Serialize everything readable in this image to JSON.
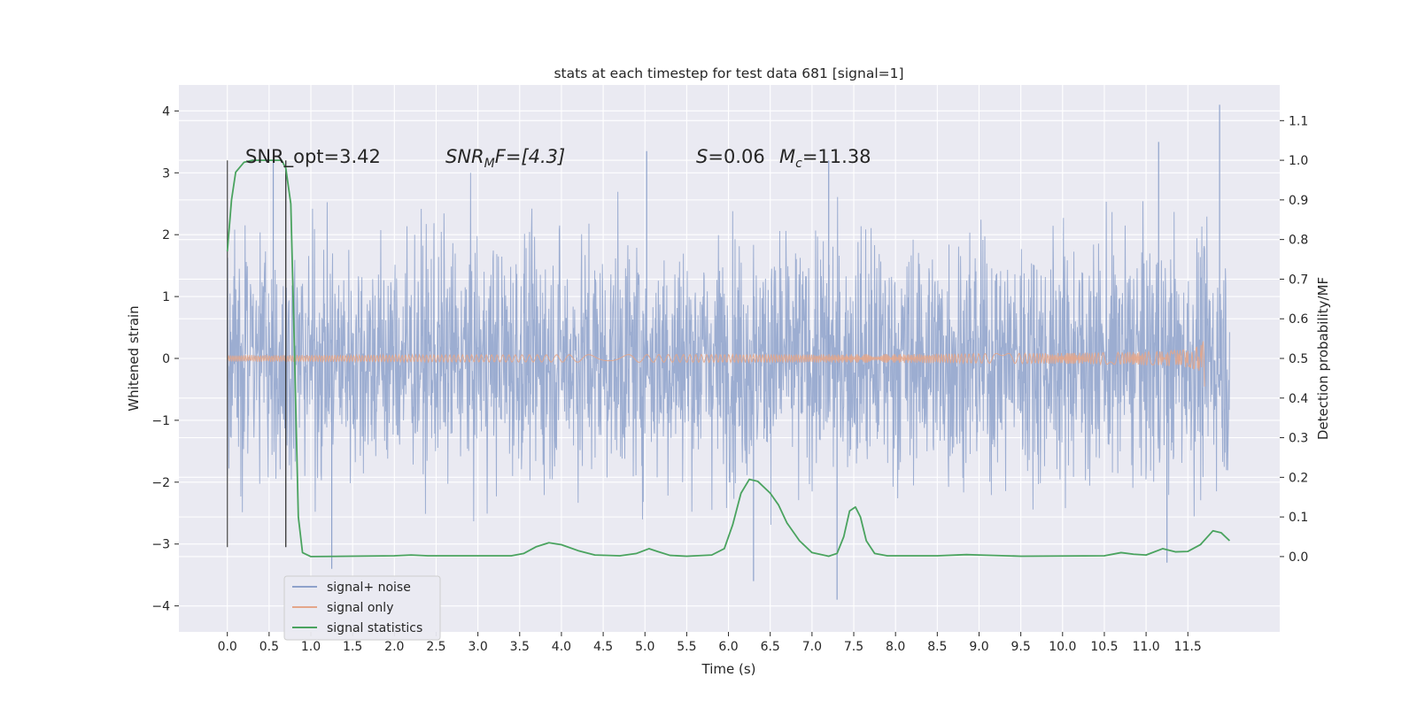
{
  "chart_data": {
    "type": "line",
    "title": "stats at each timestep for test data 681 [signal=1]",
    "xlabel": "Time (s)",
    "ylabel": "Whitened strain",
    "ylabel_right": "Detection probability/MF",
    "xlim": [
      -0.58,
      12.6
    ],
    "ylim": [
      -4.42,
      4.42
    ],
    "ylim_right": [
      -0.19,
      1.19
    ],
    "x_ticks": [
      "0.0",
      "0.5",
      "1.0",
      "1.5",
      "2.0",
      "2.5",
      "3.0",
      "3.5",
      "4.0",
      "4.5",
      "5.0",
      "5.5",
      "6.0",
      "6.5",
      "7.0",
      "7.5",
      "8.0",
      "8.5",
      "9.0",
      "9.5",
      "10.0",
      "10.5",
      "11.0",
      "11.5"
    ],
    "x_tick_values": [
      0,
      0.5,
      1,
      1.5,
      2,
      2.5,
      3,
      3.5,
      4,
      4.5,
      5,
      5.5,
      6,
      6.5,
      7,
      7.5,
      8,
      8.5,
      9,
      9.5,
      10,
      10.5,
      11,
      11.5
    ],
    "y_ticks": [
      "−4",
      "−3",
      "−2",
      "−1",
      "0",
      "1",
      "2",
      "3",
      "4"
    ],
    "y_tick_values": [
      -4,
      -3,
      -2,
      -1,
      0,
      1,
      2,
      3,
      4
    ],
    "y_ticks_right": [
      "0.0",
      "0.1",
      "0.2",
      "0.3",
      "0.4",
      "0.5",
      "0.6",
      "0.7",
      "0.8",
      "0.9",
      "1.0",
      "1.1"
    ],
    "y_tick_values_right": [
      0,
      0.1,
      0.2,
      0.3,
      0.4,
      0.5,
      0.6,
      0.7,
      0.8,
      0.9,
      1.0,
      1.1
    ],
    "grid": true,
    "legend_placement": "lower-left",
    "annotations": {
      "snr_opt": "SNR_opt=3.42",
      "snr_mf_base": "SNR",
      "snr_mf_sub": "M",
      "snr_mf_rest": "F=[4.3]",
      "s_sym": "S",
      "s_value": "=0.06",
      "mc_sym": "M",
      "mc_sub": "c",
      "mc_value": "=11.38"
    },
    "series": [
      {
        "name": "signal+ noise",
        "color": "#8ea2cb",
        "axis": "left",
        "x_range": [
          0,
          12.0
        ],
        "envelope": [
          -1.3,
          1.3
        ],
        "notable_spikes": [
          {
            "x": 0.55,
            "y": 3.2
          },
          {
            "x": 1.25,
            "y": -3.4
          },
          {
            "x": 5.02,
            "y": 3.35
          },
          {
            "x": 6.3,
            "y": -3.6
          },
          {
            "x": 7.2,
            "y": 3.2
          },
          {
            "x": 7.3,
            "y": -3.9
          },
          {
            "x": 11.15,
            "y": 3.5
          },
          {
            "x": 11.88,
            "y": 4.1
          },
          {
            "x": 11.25,
            "y": -3.3
          }
        ]
      },
      {
        "name": "signal only",
        "color": "#e4a68a",
        "axis": "left",
        "x_range": [
          0,
          11.7
        ],
        "peak_amplitude": 0.5
      },
      {
        "name": "signal statistics",
        "color": "#4aa35f",
        "axis": "right",
        "points": [
          [
            0,
            0.77
          ],
          [
            0.05,
            0.9
          ],
          [
            0.1,
            0.97
          ],
          [
            0.2,
            0.995
          ],
          [
            0.3,
            1.0
          ],
          [
            0.5,
            1.0
          ],
          [
            0.65,
            1.0
          ],
          [
            0.7,
            0.98
          ],
          [
            0.76,
            0.89
          ],
          [
            0.8,
            0.55
          ],
          [
            0.85,
            0.1
          ],
          [
            0.9,
            0.01
          ],
          [
            1.0,
            0.0
          ],
          [
            2.0,
            0.002
          ],
          [
            2.2,
            0.004
          ],
          [
            2.4,
            0.002
          ],
          [
            3.4,
            0.002
          ],
          [
            3.55,
            0.008
          ],
          [
            3.7,
            0.025
          ],
          [
            3.85,
            0.035
          ],
          [
            4.0,
            0.03
          ],
          [
            4.2,
            0.015
          ],
          [
            4.4,
            0.004
          ],
          [
            4.7,
            0.002
          ],
          [
            4.9,
            0.008
          ],
          [
            5.05,
            0.02
          ],
          [
            5.15,
            0.013
          ],
          [
            5.3,
            0.003
          ],
          [
            5.5,
            0.001
          ],
          [
            5.8,
            0.004
          ],
          [
            5.95,
            0.02
          ],
          [
            6.05,
            0.08
          ],
          [
            6.15,
            0.16
          ],
          [
            6.25,
            0.195
          ],
          [
            6.35,
            0.19
          ],
          [
            6.5,
            0.16
          ],
          [
            6.6,
            0.13
          ],
          [
            6.7,
            0.085
          ],
          [
            6.85,
            0.04
          ],
          [
            7.0,
            0.01
          ],
          [
            7.2,
            0.001
          ],
          [
            7.3,
            0.008
          ],
          [
            7.38,
            0.05
          ],
          [
            7.45,
            0.115
          ],
          [
            7.52,
            0.125
          ],
          [
            7.58,
            0.1
          ],
          [
            7.65,
            0.04
          ],
          [
            7.75,
            0.008
          ],
          [
            7.9,
            0.002
          ],
          [
            8.5,
            0.002
          ],
          [
            8.85,
            0.005
          ],
          [
            9.0,
            0.004
          ],
          [
            9.5,
            0.001
          ],
          [
            10.5,
            0.002
          ],
          [
            10.7,
            0.01
          ],
          [
            10.85,
            0.006
          ],
          [
            11.0,
            0.004
          ],
          [
            11.2,
            0.02
          ],
          [
            11.35,
            0.012
          ],
          [
            11.5,
            0.013
          ],
          [
            11.65,
            0.03
          ],
          [
            11.8,
            0.065
          ],
          [
            11.9,
            0.06
          ],
          [
            12.0,
            0.04
          ]
        ]
      }
    ],
    "marker_lines": [
      {
        "x": 0.0,
        "y_range": [
          -3.05,
          3.2
        ],
        "color": "#555555"
      },
      {
        "x": 0.7,
        "y_range": [
          -3.05,
          3.2
        ],
        "color": "#333333"
      }
    ]
  }
}
